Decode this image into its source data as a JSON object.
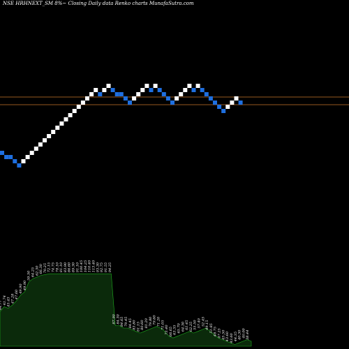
{
  "title": "NSE HRHNEXT_SM 8%~  Closing Daily data  Renko  charts MunafaSutra.com",
  "colors": {
    "background": "#000000",
    "up_brick": "#ffffff",
    "down_brick": "#1e6fe0",
    "reference_line": "#c8742a",
    "volume_fill": "#0b2a0b",
    "volume_stroke": "#1fb01f",
    "label": "#ffffff"
  },
  "chart_data": {
    "type": "renko",
    "reference_lines": [
      139,
      150
    ],
    "bricks": [
      {
        "row": 0,
        "dir": "down"
      },
      {
        "row": -1,
        "dir": "down"
      },
      {
        "row": -1,
        "dir": "down"
      },
      {
        "row": -2,
        "dir": "down"
      },
      {
        "row": -3,
        "dir": "down"
      },
      {
        "row": -2,
        "dir": "up"
      },
      {
        "row": -1,
        "dir": "up"
      },
      {
        "row": 0,
        "dir": "up"
      },
      {
        "row": 1,
        "dir": "up"
      },
      {
        "row": 2,
        "dir": "up"
      },
      {
        "row": 3,
        "dir": "up"
      },
      {
        "row": 4,
        "dir": "up"
      },
      {
        "row": 5,
        "dir": "up"
      },
      {
        "row": 6,
        "dir": "up"
      },
      {
        "row": 7,
        "dir": "up"
      },
      {
        "row": 8,
        "dir": "up"
      },
      {
        "row": 9,
        "dir": "up"
      },
      {
        "row": 10,
        "dir": "up"
      },
      {
        "row": 11,
        "dir": "up"
      },
      {
        "row": 12,
        "dir": "up"
      },
      {
        "row": 13,
        "dir": "up"
      },
      {
        "row": 14,
        "dir": "up"
      },
      {
        "row": 15,
        "dir": "up"
      },
      {
        "row": 14,
        "dir": "down"
      },
      {
        "row": 15,
        "dir": "up"
      },
      {
        "row": 16,
        "dir": "up"
      },
      {
        "row": 15,
        "dir": "down"
      },
      {
        "row": 14,
        "dir": "down"
      },
      {
        "row": 14,
        "dir": "down"
      },
      {
        "row": 13,
        "dir": "down"
      },
      {
        "row": 12,
        "dir": "down"
      },
      {
        "row": 13,
        "dir": "up"
      },
      {
        "row": 14,
        "dir": "up"
      },
      {
        "row": 15,
        "dir": "up"
      },
      {
        "row": 16,
        "dir": "up"
      },
      {
        "row": 15,
        "dir": "down"
      },
      {
        "row": 16,
        "dir": "up"
      },
      {
        "row": 15,
        "dir": "down"
      },
      {
        "row": 14,
        "dir": "down"
      },
      {
        "row": 13,
        "dir": "down"
      },
      {
        "row": 12,
        "dir": "down"
      },
      {
        "row": 13,
        "dir": "up"
      },
      {
        "row": 14,
        "dir": "up"
      },
      {
        "row": 15,
        "dir": "up"
      },
      {
        "row": 16,
        "dir": "up"
      },
      {
        "row": 15,
        "dir": "down"
      },
      {
        "row": 16,
        "dir": "up"
      },
      {
        "row": 15,
        "dir": "down"
      },
      {
        "row": 14,
        "dir": "down"
      },
      {
        "row": 13,
        "dir": "down"
      },
      {
        "row": 12,
        "dir": "down"
      },
      {
        "row": 11,
        "dir": "down"
      },
      {
        "row": 10,
        "dir": "down"
      },
      {
        "row": 11,
        "dir": "up"
      },
      {
        "row": 12,
        "dir": "up"
      },
      {
        "row": 13,
        "dir": "up"
      },
      {
        "row": 12,
        "dir": "down"
      }
    ],
    "price_labels": [
      "44.77",
      "41.74",
      "45.43",
      "47.28",
      "47.60",
      "49.90",
      "49.90",
      "59.50",
      "64.25",
      "62.30",
      "66.30",
      "70.25",
      "72.15",
      "74.75",
      "78.10",
      "81.10",
      "83.90",
      "86.60",
      "89.30",
      "91.10",
      "100.45",
      "104.25",
      "110.40",
      "113.40",
      "93.30",
      "92.75",
      "91.55",
      "94.25",
      "87.90",
      "84.30",
      "84.65",
      "79.45",
      "84.45",
      "83.80",
      "81.15",
      "80.60",
      "81.20",
      "79.80",
      "79.60",
      "71.20",
      "71.05",
      "73.40",
      "66.65",
      "63.35",
      "65.70",
      "64.30",
      "61.45",
      "62.25",
      "55.50",
      "57.40",
      "52.45",
      "49.15",
      "51.85",
      "48.75",
      "47.25",
      "45.50",
      "43.60",
      "43.60",
      "44.35",
      "40.30",
      "40.00",
      "38.44"
    ],
    "volume": [
      0.42,
      0.48,
      0.46,
      0.5,
      0.55,
      0.62,
      0.66,
      0.78,
      0.82,
      0.84,
      0.86,
      0.87,
      0.88,
      0.88,
      0.88,
      0.88,
      0.88,
      0.88,
      0.88,
      0.88,
      0.88,
      0.88,
      0.88,
      0.88,
      0.88,
      0.88,
      0.88,
      0.88,
      0.25,
      0.25,
      0.22,
      0.22,
      0.2,
      0.18,
      0.16,
      0.18,
      0.2,
      0.22,
      0.24,
      0.22,
      0.18,
      0.12,
      0.1,
      0.12,
      0.14,
      0.16,
      0.18,
      0.16,
      0.18,
      0.2,
      0.22,
      0.18,
      0.14,
      0.1,
      0.08,
      0.06,
      0.04,
      0.02,
      0.04,
      0.06,
      0.08,
      0.06
    ]
  }
}
